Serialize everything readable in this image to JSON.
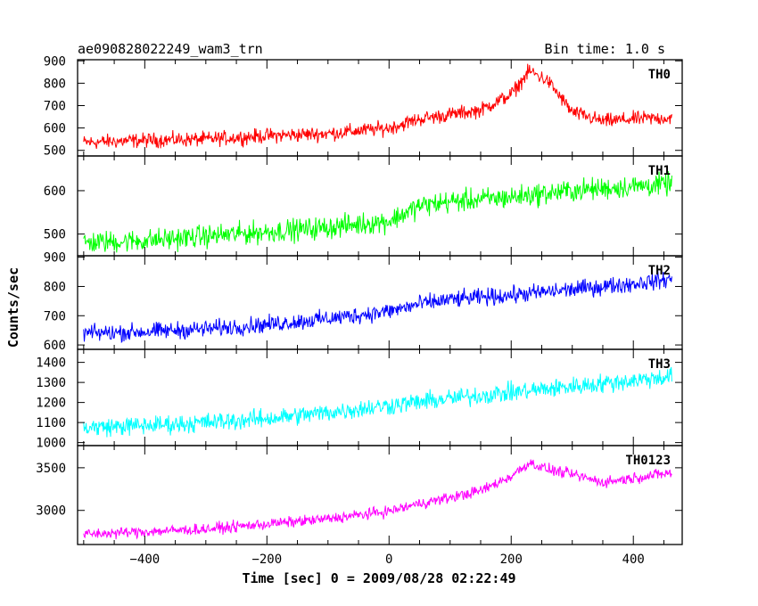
{
  "header": {
    "title": "ae090828022249_wam3_trn",
    "bin_time": "Bin time: 1.0 s"
  },
  "chart_data": {
    "type": "line",
    "title": "ae090828022249_wam3_trn",
    "xlabel": "Time [sec] 0 = 2009/08/28 02:22:49",
    "ylabel": "Counts/sec",
    "xlim": [
      -510,
      480
    ],
    "xticks": [
      -400,
      -200,
      0,
      200,
      400
    ],
    "grid": false,
    "panels": [
      {
        "name": "TH0",
        "color": "#ff0000",
        "ylim": [
          475,
          905
        ],
        "yticks": [
          500,
          600,
          700,
          800,
          900
        ],
        "x": [
          -500,
          -400,
          -300,
          -200,
          -100,
          0,
          50,
          100,
          150,
          200,
          230,
          260,
          300,
          350,
          400,
          460
        ],
        "y": [
          535,
          545,
          550,
          565,
          575,
          600,
          640,
          660,
          680,
          750,
          855,
          810,
          670,
          630,
          640,
          645
        ],
        "noise": 28
      },
      {
        "name": "TH1",
        "color": "#00ff00",
        "ylim": [
          450,
          680
        ],
        "yticks": [
          500,
          600
        ],
        "x": [
          -500,
          -400,
          -300,
          -200,
          -100,
          0,
          50,
          100,
          200,
          300,
          400,
          460
        ],
        "y": [
          480,
          485,
          495,
          505,
          515,
          530,
          565,
          575,
          585,
          600,
          610,
          615
        ],
        "noise": 22
      },
      {
        "name": "TH2",
        "color": "#0000ff",
        "ylim": [
          585,
          905
        ],
        "yticks": [
          600,
          700,
          800,
          900
        ],
        "x": [
          -500,
          -400,
          -300,
          -200,
          -100,
          0,
          50,
          100,
          200,
          300,
          400,
          460
        ],
        "y": [
          640,
          645,
          655,
          670,
          690,
          715,
          740,
          755,
          770,
          790,
          810,
          825
        ],
        "noise": 25
      },
      {
        "name": "TH3",
        "color": "#00ffff",
        "ylim": [
          985,
          1465
        ],
        "yticks": [
          1000,
          1100,
          1200,
          1300,
          1400
        ],
        "x": [
          -500,
          -400,
          -300,
          -200,
          -100,
          0,
          100,
          200,
          300,
          400,
          460
        ],
        "y": [
          1075,
          1085,
          1100,
          1120,
          1150,
          1185,
          1220,
          1250,
          1280,
          1310,
          1330
        ],
        "noise": 40
      },
      {
        "name": "TH0123",
        "color": "#ff00ff",
        "ylim": [
          2600,
          3760
        ],
        "yticks": [
          3000,
          3500
        ],
        "x": [
          -500,
          -400,
          -300,
          -200,
          -100,
          0,
          50,
          100,
          150,
          200,
          230,
          260,
          300,
          350,
          400,
          460
        ],
        "y": [
          2720,
          2750,
          2780,
          2840,
          2900,
          2990,
          3080,
          3150,
          3230,
          3400,
          3560,
          3480,
          3420,
          3330,
          3380,
          3440
        ],
        "noise": 55
      }
    ]
  }
}
